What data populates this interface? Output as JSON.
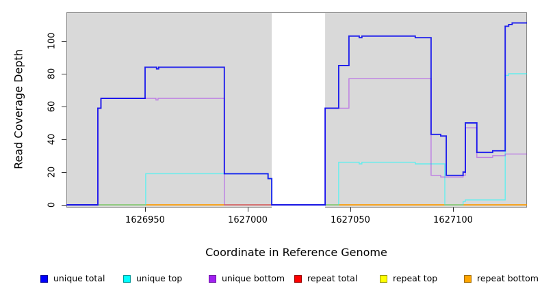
{
  "figure": {
    "xlabel": "Coordinate in Reference Genome",
    "ylabel": "Read Coverage Depth"
  },
  "chart_data": {
    "type": "line",
    "subtype": "step",
    "title": "",
    "xlabel": "Coordinate in Reference Genome",
    "ylabel": "Read Coverage Depth",
    "xlim": [
      1626911.7,
      1627136
    ],
    "ylim": [
      0,
      117.5
    ],
    "x_ticks": [
      1626950,
      1627000,
      1627050,
      1627100
    ],
    "x_tick_labels": [
      "1626950",
      "1627000",
      "1627050",
      "1627100"
    ],
    "y_ticks": [
      0,
      20,
      40,
      60,
      80,
      100
    ],
    "y_tick_labels": [
      "0",
      "20",
      "40",
      "60",
      "80",
      "100"
    ],
    "grid": false,
    "plot_bg_color": "#d9d9d9",
    "masked_region": {
      "start": 1627011.7,
      "end": 1627037.7,
      "color": "#ffffff"
    },
    "legend_position": "bottom",
    "series": [
      {
        "name": "repeat top",
        "color": "#ffff00",
        "opacity": 0.95,
        "width": 1.2,
        "steps": [
          [
            1626911.7,
            0
          ],
          [
            1627136,
            0
          ]
        ]
      },
      {
        "name": "repeat total",
        "color": "#dd0000",
        "opacity": 0.95,
        "width": 1.2,
        "steps": [
          [
            1626911.7,
            0
          ],
          [
            1627136,
            0
          ]
        ]
      },
      {
        "name": "repeat bottom",
        "color": "#ffa500",
        "opacity": 0.95,
        "width": 1.6,
        "steps": [
          [
            1626911.7,
            0
          ],
          [
            1627136,
            0
          ]
        ]
      },
      {
        "name": "unique top",
        "color": "#00ffff",
        "opacity": 0.55,
        "width": 1.4,
        "steps": [
          [
            1626911.7,
            0
          ],
          [
            1626950.3,
            19
          ],
          [
            1627009.9,
            16
          ],
          [
            1627011.7,
            0
          ],
          [
            1627044.3,
            26
          ],
          [
            1627054.3,
            25
          ],
          [
            1627055.6,
            26
          ],
          [
            1627081.6,
            25
          ],
          [
            1627096,
            0
          ],
          [
            1627104.9,
            2
          ],
          [
            1627106,
            3
          ],
          [
            1627125.4,
            79
          ],
          [
            1627127.1,
            80
          ],
          [
            1627136,
            80
          ]
        ]
      },
      {
        "name": "unique bottom",
        "color": "#a020f0",
        "opacity": 0.5,
        "width": 1.4,
        "steps": [
          [
            1626911.7,
            0
          ],
          [
            1626927,
            59
          ],
          [
            1626928.5,
            65
          ],
          [
            1626955.3,
            64
          ],
          [
            1626956.3,
            65
          ],
          [
            1626988.6,
            0
          ],
          [
            1627037.7,
            59
          ],
          [
            1627049.3,
            77
          ],
          [
            1627089.3,
            18
          ],
          [
            1627094,
            17
          ],
          [
            1627104.9,
            18
          ],
          [
            1627106,
            47
          ],
          [
            1627111.6,
            29
          ],
          [
            1627119.3,
            30
          ],
          [
            1627125.4,
            31
          ],
          [
            1627136,
            31
          ]
        ]
      },
      {
        "name": "unique total",
        "color": "#0000ee",
        "opacity": 0.85,
        "width": 1.9,
        "steps": [
          [
            1626911.7,
            0
          ],
          [
            1626927,
            59
          ],
          [
            1626928.5,
            65
          ],
          [
            1626950,
            84
          ],
          [
            1626955.6,
            83
          ],
          [
            1626956.6,
            84
          ],
          [
            1626988.6,
            19
          ],
          [
            1627009.9,
            16
          ],
          [
            1627011.7,
            0
          ],
          [
            1627037.7,
            59
          ],
          [
            1627044.3,
            85
          ],
          [
            1627049.3,
            103
          ],
          [
            1627054.3,
            102
          ],
          [
            1627055.6,
            103
          ],
          [
            1627081.6,
            102
          ],
          [
            1627089.3,
            43
          ],
          [
            1627094,
            42
          ],
          [
            1627096.7,
            18
          ],
          [
            1627104.9,
            20
          ],
          [
            1627106,
            50
          ],
          [
            1627111.6,
            32
          ],
          [
            1627119.3,
            33
          ],
          [
            1627125.4,
            109
          ],
          [
            1627127.1,
            110
          ],
          [
            1627128.8,
            111
          ],
          [
            1627136,
            111
          ]
        ]
      }
    ]
  },
  "legend": {
    "items": [
      {
        "label": "unique total",
        "fill": "#0000ff",
        "border": "#000099"
      },
      {
        "label": "unique top",
        "fill": "#00ffff",
        "border": "#009999"
      },
      {
        "label": "unique bottom",
        "fill": "#a020f0",
        "border": "#6a0fa0"
      },
      {
        "label": "repeat total",
        "fill": "#ff0000",
        "border": "#990000"
      },
      {
        "label": "repeat top",
        "fill": "#ffff00",
        "border": "#999900"
      },
      {
        "label": "repeat bottom",
        "fill": "#ffa500",
        "border": "#a06800"
      }
    ]
  }
}
